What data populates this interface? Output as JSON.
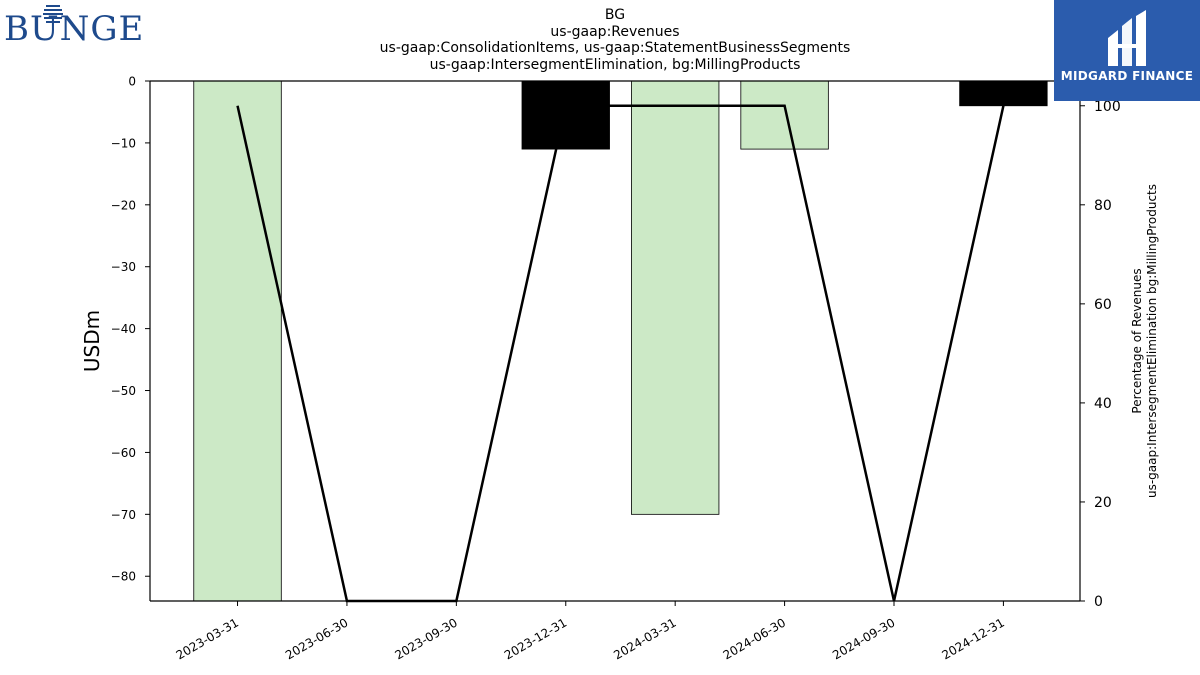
{
  "header": {
    "title_lines": [
      "BG",
      "us-gaap:Revenues",
      "us-gaap:ConsolidationItems, us-gaap:StatementBusinessSegments",
      "us-gaap:IntersegmentElimination, bg:MillingProducts"
    ]
  },
  "logos": {
    "left_brand": "BUNGE",
    "right_brand": "MIDGARD FINANCE"
  },
  "colors": {
    "bar_negative_increase": "#cce9c6",
    "bar_dark": "#000000",
    "line": "#000000",
    "brand_blue": "#1e4a8c",
    "midgard_blue": "#2b5cad"
  },
  "chart_data": {
    "type": "bar",
    "categories": [
      "2023-03-31",
      "2023-06-30",
      "2023-09-30",
      "2023-12-31",
      "2024-03-31",
      "2024-06-30",
      "2024-09-30",
      "2024-12-31"
    ],
    "series": [
      {
        "kind": "bar",
        "axis": "left",
        "values": [
          -84,
          0,
          0,
          -11,
          -70,
          -11,
          0,
          -4
        ],
        "colors": [
          "#cce9c6",
          null,
          null,
          "#000000",
          "#cce9c6",
          "#cce9c6",
          null,
          "#000000"
        ]
      },
      {
        "kind": "line",
        "axis": "right",
        "values": [
          100,
          0,
          0,
          100,
          100,
          100,
          0,
          100
        ]
      }
    ],
    "ylabel": "USDm",
    "ylabel_right": [
      "Percentage of Revenues",
      "us-gaap:IntersegmentElimination bg:MillingProducts"
    ],
    "ylim": [
      -84,
      0
    ],
    "yticks": [
      0,
      -10,
      -20,
      -30,
      -40,
      -50,
      -60,
      -70,
      -80
    ],
    "ylim_right": [
      0,
      105
    ],
    "yticks_right": [
      0,
      20,
      40,
      60,
      80,
      100
    ],
    "grid": false
  }
}
